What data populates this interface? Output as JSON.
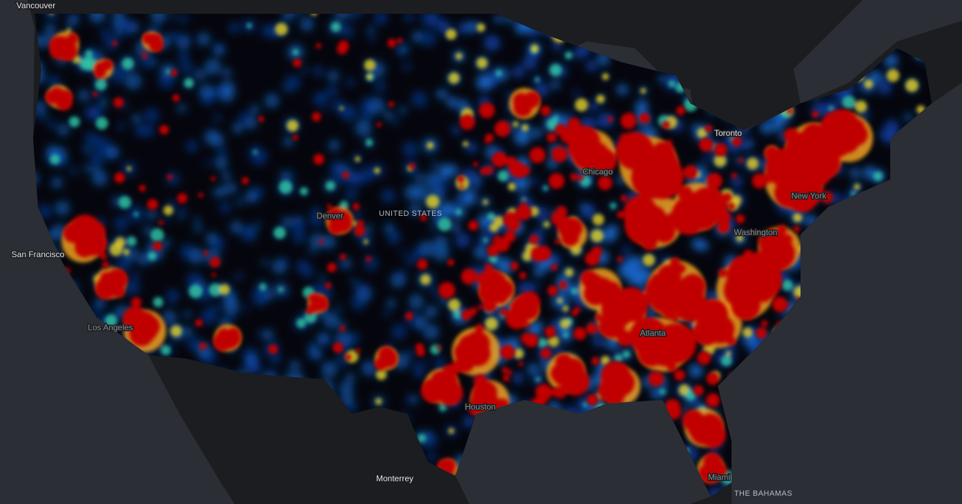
{
  "map": {
    "labels": [
      {
        "text": "Vancouver"
      },
      {
        "text": "Toronto"
      },
      {
        "text": "San Francisco"
      },
      {
        "text": "Los Angeles"
      },
      {
        "text": "Denver"
      },
      {
        "text": "UNITED STATES"
      },
      {
        "text": "Chicago"
      },
      {
        "text": "New York"
      },
      {
        "text": "Washington"
      },
      {
        "text": "Atlanta"
      },
      {
        "text": "Houston"
      },
      {
        "text": "Monterrey"
      },
      {
        "text": "Miami"
      },
      {
        "text": "THE BAHAMAS"
      }
    ]
  }
}
